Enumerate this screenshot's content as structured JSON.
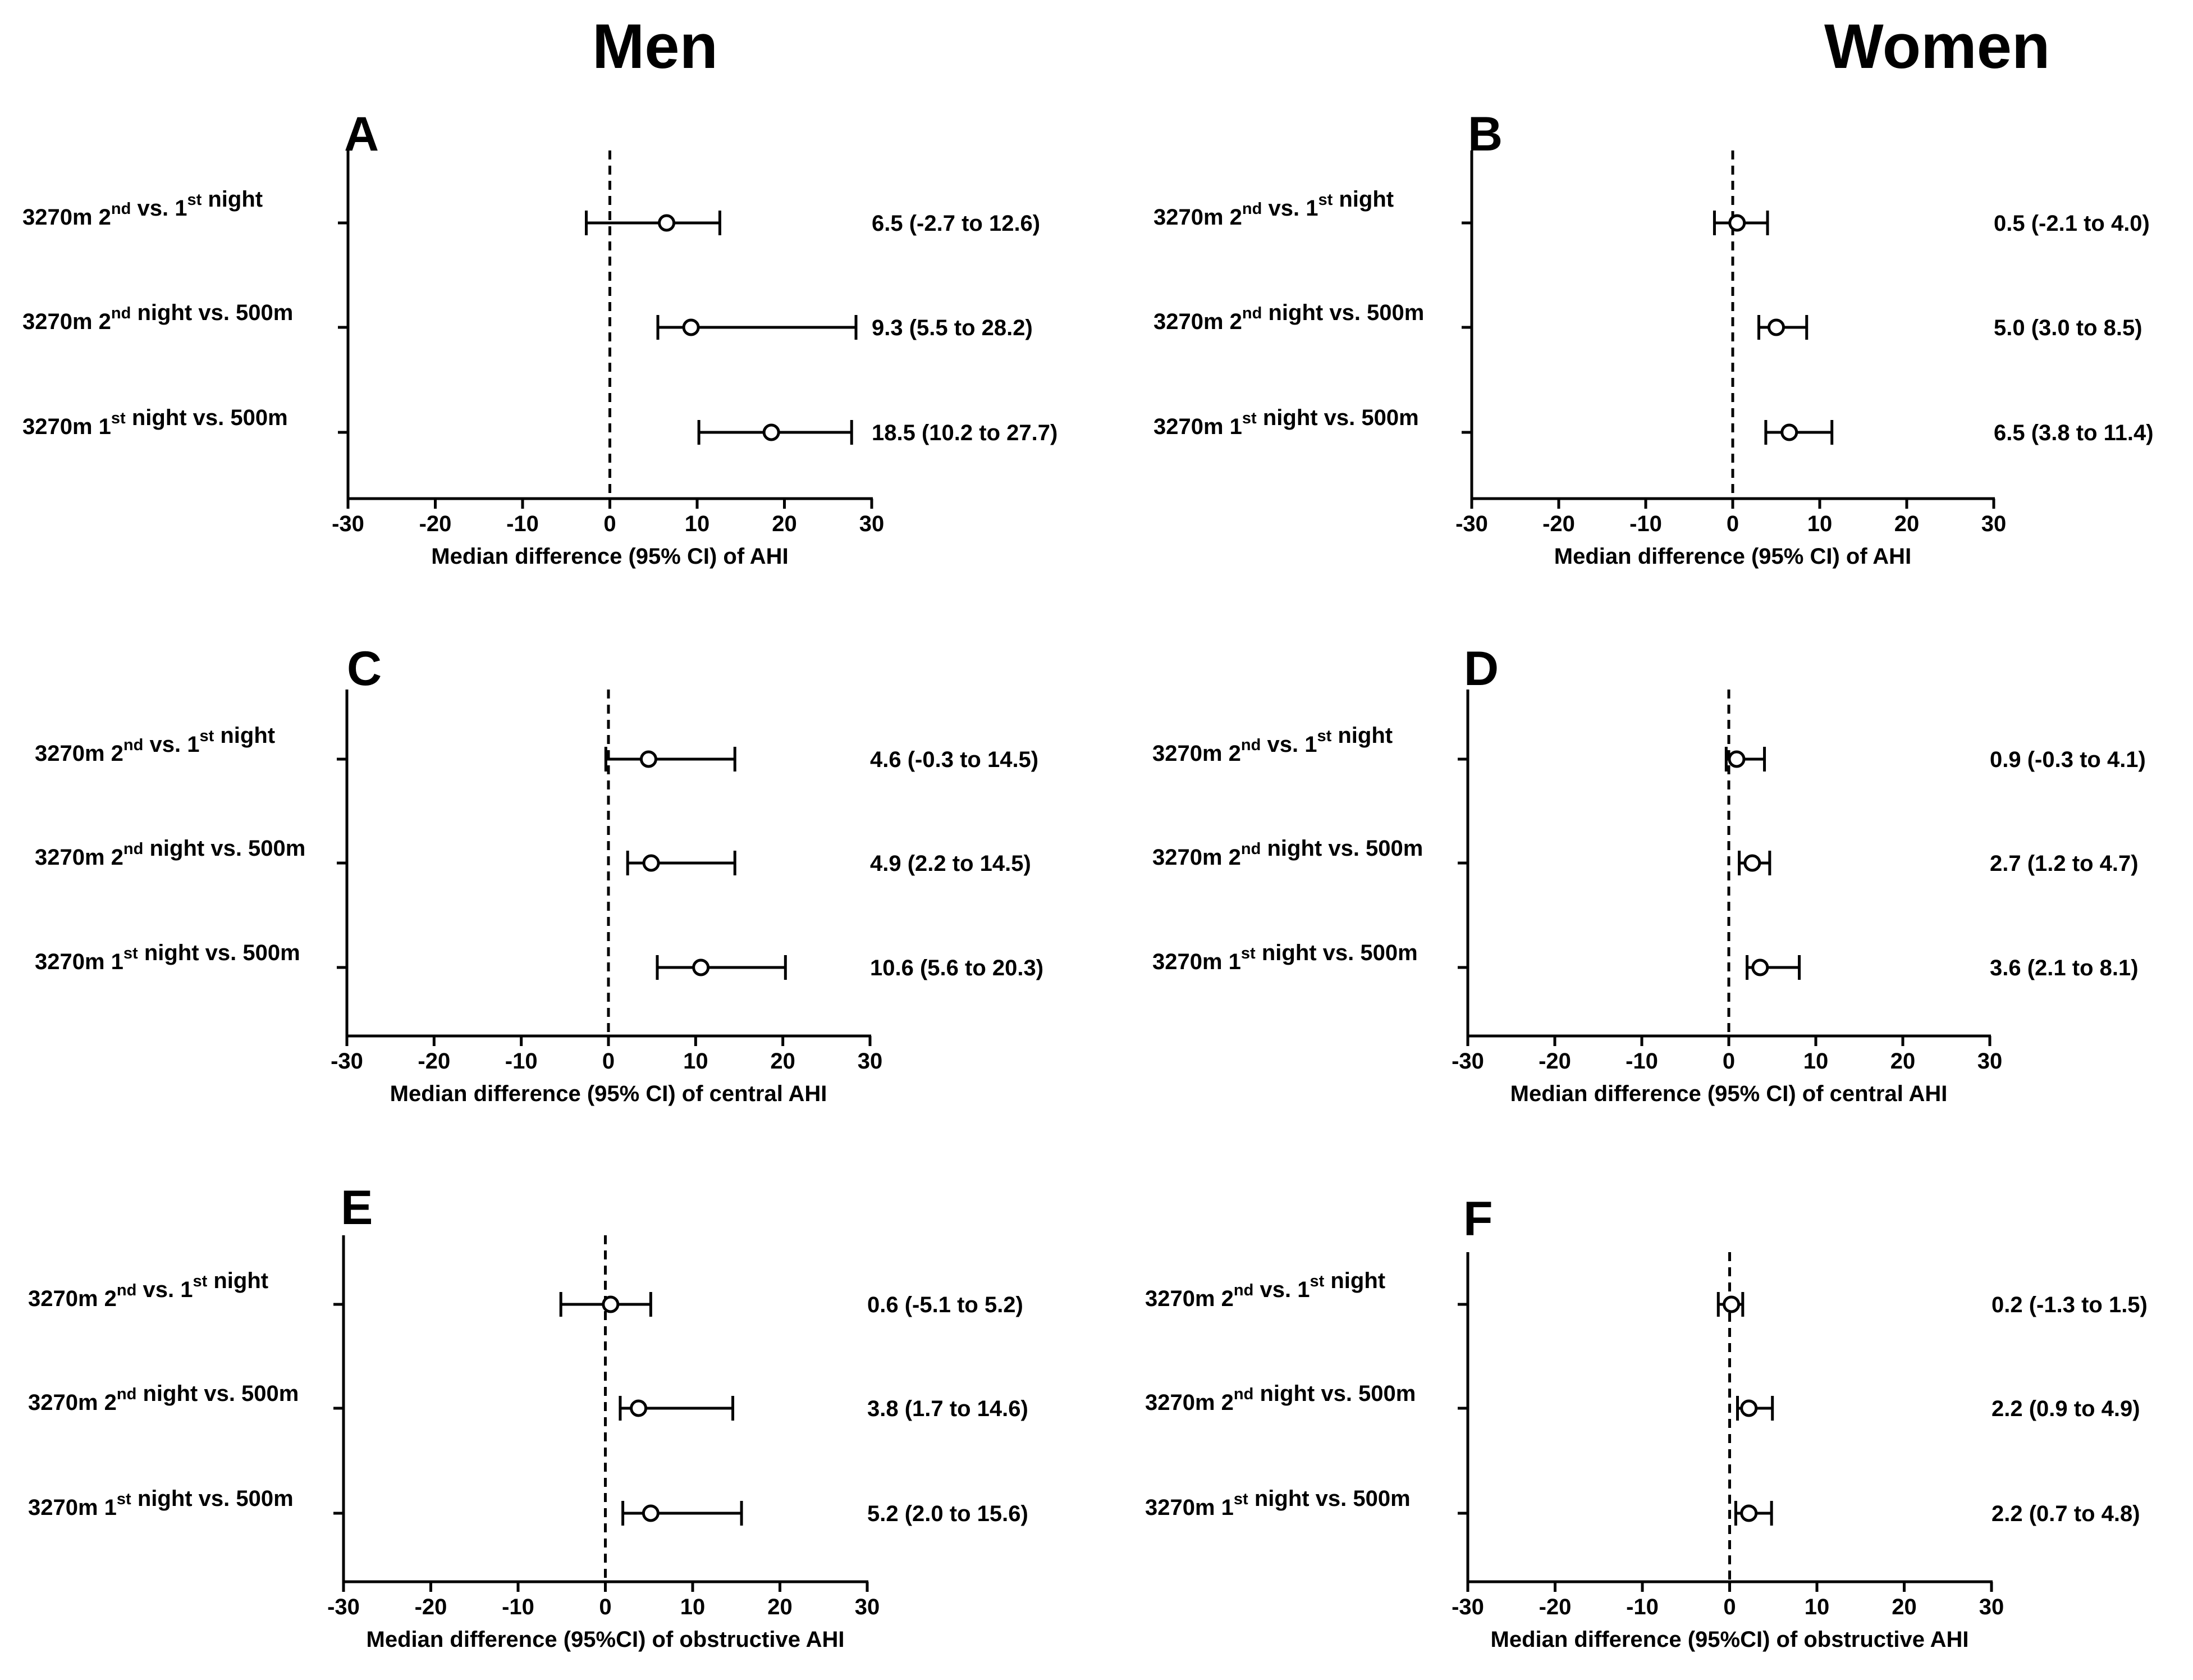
{
  "figure": {
    "column_titles": {
      "men": "Men",
      "women": "Women"
    }
  },
  "chart_data": [
    {
      "panel": "A",
      "group": "Men",
      "type": "forest",
      "xlabel": "Median difference (95% CI) of AHI",
      "xlim": [
        -30,
        30
      ],
      "xticks": [
        -30,
        -20,
        -10,
        0,
        10,
        20,
        30
      ],
      "reference_line": 0,
      "rows": [
        {
          "label": "3270m 2nd vs. 1st night",
          "median": 6.5,
          "ci_low": -2.7,
          "ci_high": 12.6,
          "annotation": "6.5 (-2.7 to 12.6)"
        },
        {
          "label": "3270m 2nd night vs. 500m",
          "median": 9.3,
          "ci_low": 5.5,
          "ci_high": 28.2,
          "annotation": "9.3 (5.5 to 28.2)"
        },
        {
          "label": "3270m 1st night vs. 500m",
          "median": 18.5,
          "ci_low": 10.2,
          "ci_high": 27.7,
          "annotation": "18.5 (10.2 to 27.7)"
        }
      ]
    },
    {
      "panel": "B",
      "group": "Women",
      "type": "forest",
      "xlabel": "Median difference (95% CI) of AHI",
      "xlim": [
        -30,
        30
      ],
      "xticks": [
        -30,
        -20,
        -10,
        0,
        10,
        20,
        30
      ],
      "reference_line": 0,
      "rows": [
        {
          "label": "3270m 2nd vs. 1st night",
          "median": 0.5,
          "ci_low": -2.1,
          "ci_high": 4.0,
          "annotation": "0.5 (-2.1 to 4.0)"
        },
        {
          "label": "3270m 2nd night vs. 500m",
          "median": 5.0,
          "ci_low": 3.0,
          "ci_high": 8.5,
          "annotation": "5.0 (3.0 to 8.5)"
        },
        {
          "label": "3270m 1st night vs. 500m",
          "median": 6.5,
          "ci_low": 3.8,
          "ci_high": 11.4,
          "annotation": "6.5 (3.8 to 11.4)"
        }
      ]
    },
    {
      "panel": "C",
      "group": "Men",
      "type": "forest",
      "xlabel": "Median difference (95% CI) of central AHI",
      "xlim": [
        -30,
        30
      ],
      "xticks": [
        -30,
        -20,
        -10,
        0,
        10,
        20,
        30
      ],
      "reference_line": 0,
      "rows": [
        {
          "label": "3270m 2nd vs. 1st night",
          "median": 4.6,
          "ci_low": -0.3,
          "ci_high": 14.5,
          "annotation": "4.6 (-0.3 to 14.5)"
        },
        {
          "label": "3270m 2nd night vs. 500m",
          "median": 4.9,
          "ci_low": 2.2,
          "ci_high": 14.5,
          "annotation": "4.9 (2.2 to 14.5)"
        },
        {
          "label": "3270m 1st night vs. 500m",
          "median": 10.6,
          "ci_low": 5.6,
          "ci_high": 20.3,
          "annotation": "10.6 (5.6 to 20.3)"
        }
      ]
    },
    {
      "panel": "D",
      "group": "Women",
      "type": "forest",
      "xlabel": "Median difference (95% CI) of central AHI",
      "xlim": [
        -30,
        30
      ],
      "xticks": [
        -30,
        -20,
        -10,
        0,
        10,
        20,
        30
      ],
      "reference_line": 0,
      "rows": [
        {
          "label": "3270m 2nd vs. 1st night",
          "median": 0.9,
          "ci_low": -0.3,
          "ci_high": 4.1,
          "annotation": "0.9 (-0.3 to 4.1)"
        },
        {
          "label": "3270m 2nd night vs. 500m",
          "median": 2.7,
          "ci_low": 1.2,
          "ci_high": 4.7,
          "annotation": "2.7 (1.2 to 4.7)"
        },
        {
          "label": "3270m 1st night vs. 500m",
          "median": 3.6,
          "ci_low": 2.1,
          "ci_high": 8.1,
          "annotation": "3.6 (2.1 to 8.1)"
        }
      ]
    },
    {
      "panel": "E",
      "group": "Men",
      "type": "forest",
      "xlabel": "Median difference (95%CI) of obstructive AHI",
      "xlim": [
        -30,
        30
      ],
      "xticks": [
        -30,
        -20,
        -10,
        0,
        10,
        20,
        30
      ],
      "reference_line": 0,
      "rows": [
        {
          "label": "3270m 2nd vs. 1st night",
          "median": 0.6,
          "ci_low": -5.1,
          "ci_high": 5.2,
          "annotation": "0.6 (-5.1 to 5.2)"
        },
        {
          "label": "3270m 2nd night vs. 500m",
          "median": 3.8,
          "ci_low": 1.7,
          "ci_high": 14.6,
          "annotation": "3.8 (1.7 to 14.6)"
        },
        {
          "label": "3270m 1st night vs. 500m",
          "median": 5.2,
          "ci_low": 2.0,
          "ci_high": 15.6,
          "annotation": "5.2 (2.0 to 15.6)"
        }
      ]
    },
    {
      "panel": "F",
      "group": "Women",
      "type": "forest",
      "xlabel": "Median difference (95%CI) of obstructive AHI",
      "xlim": [
        -30,
        30
      ],
      "xticks": [
        -30,
        -20,
        -10,
        0,
        10,
        20,
        30
      ],
      "reference_line": 0,
      "rows": [
        {
          "label": "3270m 2nd vs. 1st night",
          "median": 0.2,
          "ci_low": -1.3,
          "ci_high": 1.5,
          "annotation": "0.2 (-1.3 to 1.5)"
        },
        {
          "label": "3270m 2nd night vs. 500m",
          "median": 2.2,
          "ci_low": 0.9,
          "ci_high": 4.9,
          "annotation": "2.2 (0.9 to 4.9)"
        },
        {
          "label": "3270m 1st night vs. 500m",
          "median": 2.2,
          "ci_low": 0.7,
          "ci_high": 4.8,
          "annotation": "2.2 (0.7 to 4.8)"
        }
      ]
    }
  ]
}
